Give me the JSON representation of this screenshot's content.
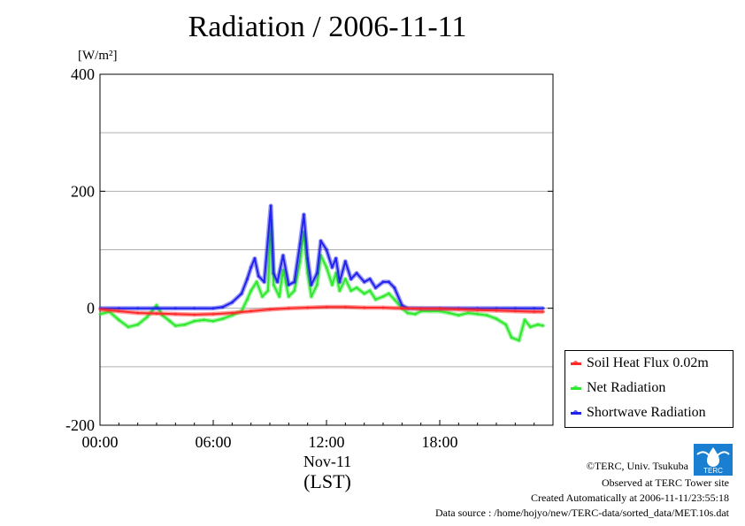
{
  "title": "Radiation / 2006-11-11",
  "unit_label": "[W/m²]",
  "colors": {
    "soil": "#ff2a2a",
    "net": "#2ee82e",
    "shortwave": "#2222ee",
    "grid": "#b0b0b0"
  },
  "x_axis": {
    "date_label": "Nov-11",
    "tz_label": "(LST)"
  },
  "legend": [
    {
      "key": "soil",
      "label": "Soil Heat Flux 0.02m"
    },
    {
      "key": "net",
      "label": "Net Radiation"
    },
    {
      "key": "shortwave",
      "label": "Shortwave Radiation"
    }
  ],
  "footer": {
    "copyright": "©TERC, Univ. Tsukuba",
    "observed": "Observed at TERC Tower site",
    "created": "Created Automatically at 2006-11-11/23:55:18",
    "source": "Data source : /home/hojyo/new/TERC-data/sorted_data/MET.10s.dat"
  },
  "logo_text": "TERC",
  "chart_data": {
    "type": "line",
    "title": "Radiation / 2006-11-11",
    "ylabel": "[W/m²]",
    "xlabel": "Nov-11 (LST)",
    "xlim": [
      0,
      24
    ],
    "ylim": [
      -200,
      400
    ],
    "yticks": [
      -200,
      0,
      200,
      400
    ],
    "xticks": [
      0,
      6,
      12,
      18
    ],
    "xtick_labels": [
      "00:00",
      "06:00",
      "12:00",
      "18:00"
    ],
    "grid": true,
    "legend_position": "right, below plot top",
    "series": [
      {
        "name": "Soil Heat Flux 0.02m",
        "key": "soil",
        "points": [
          [
            0,
            -2
          ],
          [
            1,
            -5
          ],
          [
            2,
            -8
          ],
          [
            3,
            -9
          ],
          [
            4,
            -10
          ],
          [
            5,
            -11
          ],
          [
            6,
            -10
          ],
          [
            7,
            -8
          ],
          [
            8,
            -5
          ],
          [
            9,
            -2
          ],
          [
            10,
            0
          ],
          [
            11,
            1
          ],
          [
            12,
            2
          ],
          [
            13,
            2
          ],
          [
            14,
            1
          ],
          [
            15,
            1
          ],
          [
            16,
            0
          ],
          [
            17,
            -1
          ],
          [
            18,
            -1
          ],
          [
            19,
            -2
          ],
          [
            20,
            -3
          ],
          [
            21,
            -4
          ],
          [
            22,
            -5
          ],
          [
            23,
            -6
          ],
          [
            23.5,
            -6
          ]
        ]
      },
      {
        "name": "Net Radiation",
        "key": "net",
        "points": [
          [
            0,
            -10
          ],
          [
            0.5,
            -6
          ],
          [
            1,
            -20
          ],
          [
            1.5,
            -32
          ],
          [
            2,
            -28
          ],
          [
            2.5,
            -15
          ],
          [
            3,
            5
          ],
          [
            3.3,
            -12
          ],
          [
            3.7,
            -22
          ],
          [
            4,
            -30
          ],
          [
            4.5,
            -28
          ],
          [
            5,
            -22
          ],
          [
            5.5,
            -20
          ],
          [
            6,
            -22
          ],
          [
            6.5,
            -18
          ],
          [
            7,
            -12
          ],
          [
            7.5,
            -5
          ],
          [
            7.8,
            15
          ],
          [
            8,
            30
          ],
          [
            8.3,
            45
          ],
          [
            8.6,
            20
          ],
          [
            8.9,
            30
          ],
          [
            9.05,
            150
          ],
          [
            9.2,
            40
          ],
          [
            9.5,
            20
          ],
          [
            9.7,
            65
          ],
          [
            10,
            20
          ],
          [
            10.3,
            30
          ],
          [
            10.6,
            80
          ],
          [
            10.8,
            130
          ],
          [
            11,
            60
          ],
          [
            11.2,
            20
          ],
          [
            11.5,
            40
          ],
          [
            11.7,
            90
          ],
          [
            12,
            70
          ],
          [
            12.3,
            40
          ],
          [
            12.5,
            60
          ],
          [
            12.7,
            30
          ],
          [
            13,
            50
          ],
          [
            13.3,
            30
          ],
          [
            13.6,
            35
          ],
          [
            14,
            25
          ],
          [
            14.3,
            30
          ],
          [
            14.6,
            15
          ],
          [
            15,
            20
          ],
          [
            15.3,
            25
          ],
          [
            15.6,
            15
          ],
          [
            16,
            0
          ],
          [
            16.3,
            -8
          ],
          [
            16.7,
            -10
          ],
          [
            17,
            -5
          ],
          [
            17.5,
            -5
          ],
          [
            18,
            -5
          ],
          [
            18.5,
            -8
          ],
          [
            19,
            -12
          ],
          [
            19.5,
            -8
          ],
          [
            20,
            -10
          ],
          [
            20.5,
            -12
          ],
          [
            21,
            -18
          ],
          [
            21.5,
            -28
          ],
          [
            21.8,
            -50
          ],
          [
            22.2,
            -55
          ],
          [
            22.5,
            -20
          ],
          [
            22.8,
            -32
          ],
          [
            23.2,
            -28
          ],
          [
            23.5,
            -30
          ]
        ]
      },
      {
        "name": "Shortwave Radiation",
        "key": "shortwave",
        "points": [
          [
            0,
            0
          ],
          [
            1,
            0
          ],
          [
            2,
            0
          ],
          [
            3,
            0
          ],
          [
            4,
            0
          ],
          [
            5,
            0
          ],
          [
            6,
            0
          ],
          [
            6.5,
            2
          ],
          [
            7,
            10
          ],
          [
            7.5,
            25
          ],
          [
            7.8,
            50
          ],
          [
            8,
            70
          ],
          [
            8.2,
            85
          ],
          [
            8.4,
            55
          ],
          [
            8.7,
            45
          ],
          [
            9.05,
            175
          ],
          [
            9.2,
            60
          ],
          [
            9.4,
            45
          ],
          [
            9.7,
            90
          ],
          [
            10,
            40
          ],
          [
            10.3,
            45
          ],
          [
            10.6,
            110
          ],
          [
            10.8,
            160
          ],
          [
            11,
            85
          ],
          [
            11.2,
            40
          ],
          [
            11.5,
            60
          ],
          [
            11.7,
            115
          ],
          [
            12,
            100
          ],
          [
            12.3,
            70
          ],
          [
            12.5,
            85
          ],
          [
            12.7,
            45
          ],
          [
            13,
            80
          ],
          [
            13.3,
            50
          ],
          [
            13.6,
            60
          ],
          [
            14,
            45
          ],
          [
            14.3,
            50
          ],
          [
            14.6,
            35
          ],
          [
            15,
            45
          ],
          [
            15.3,
            45
          ],
          [
            15.6,
            35
          ],
          [
            16,
            5
          ],
          [
            16.3,
            0
          ],
          [
            17,
            0
          ],
          [
            18,
            0
          ],
          [
            19,
            0
          ],
          [
            20,
            0
          ],
          [
            21,
            0
          ],
          [
            22,
            0
          ],
          [
            23,
            0
          ],
          [
            23.5,
            0
          ]
        ]
      }
    ]
  }
}
